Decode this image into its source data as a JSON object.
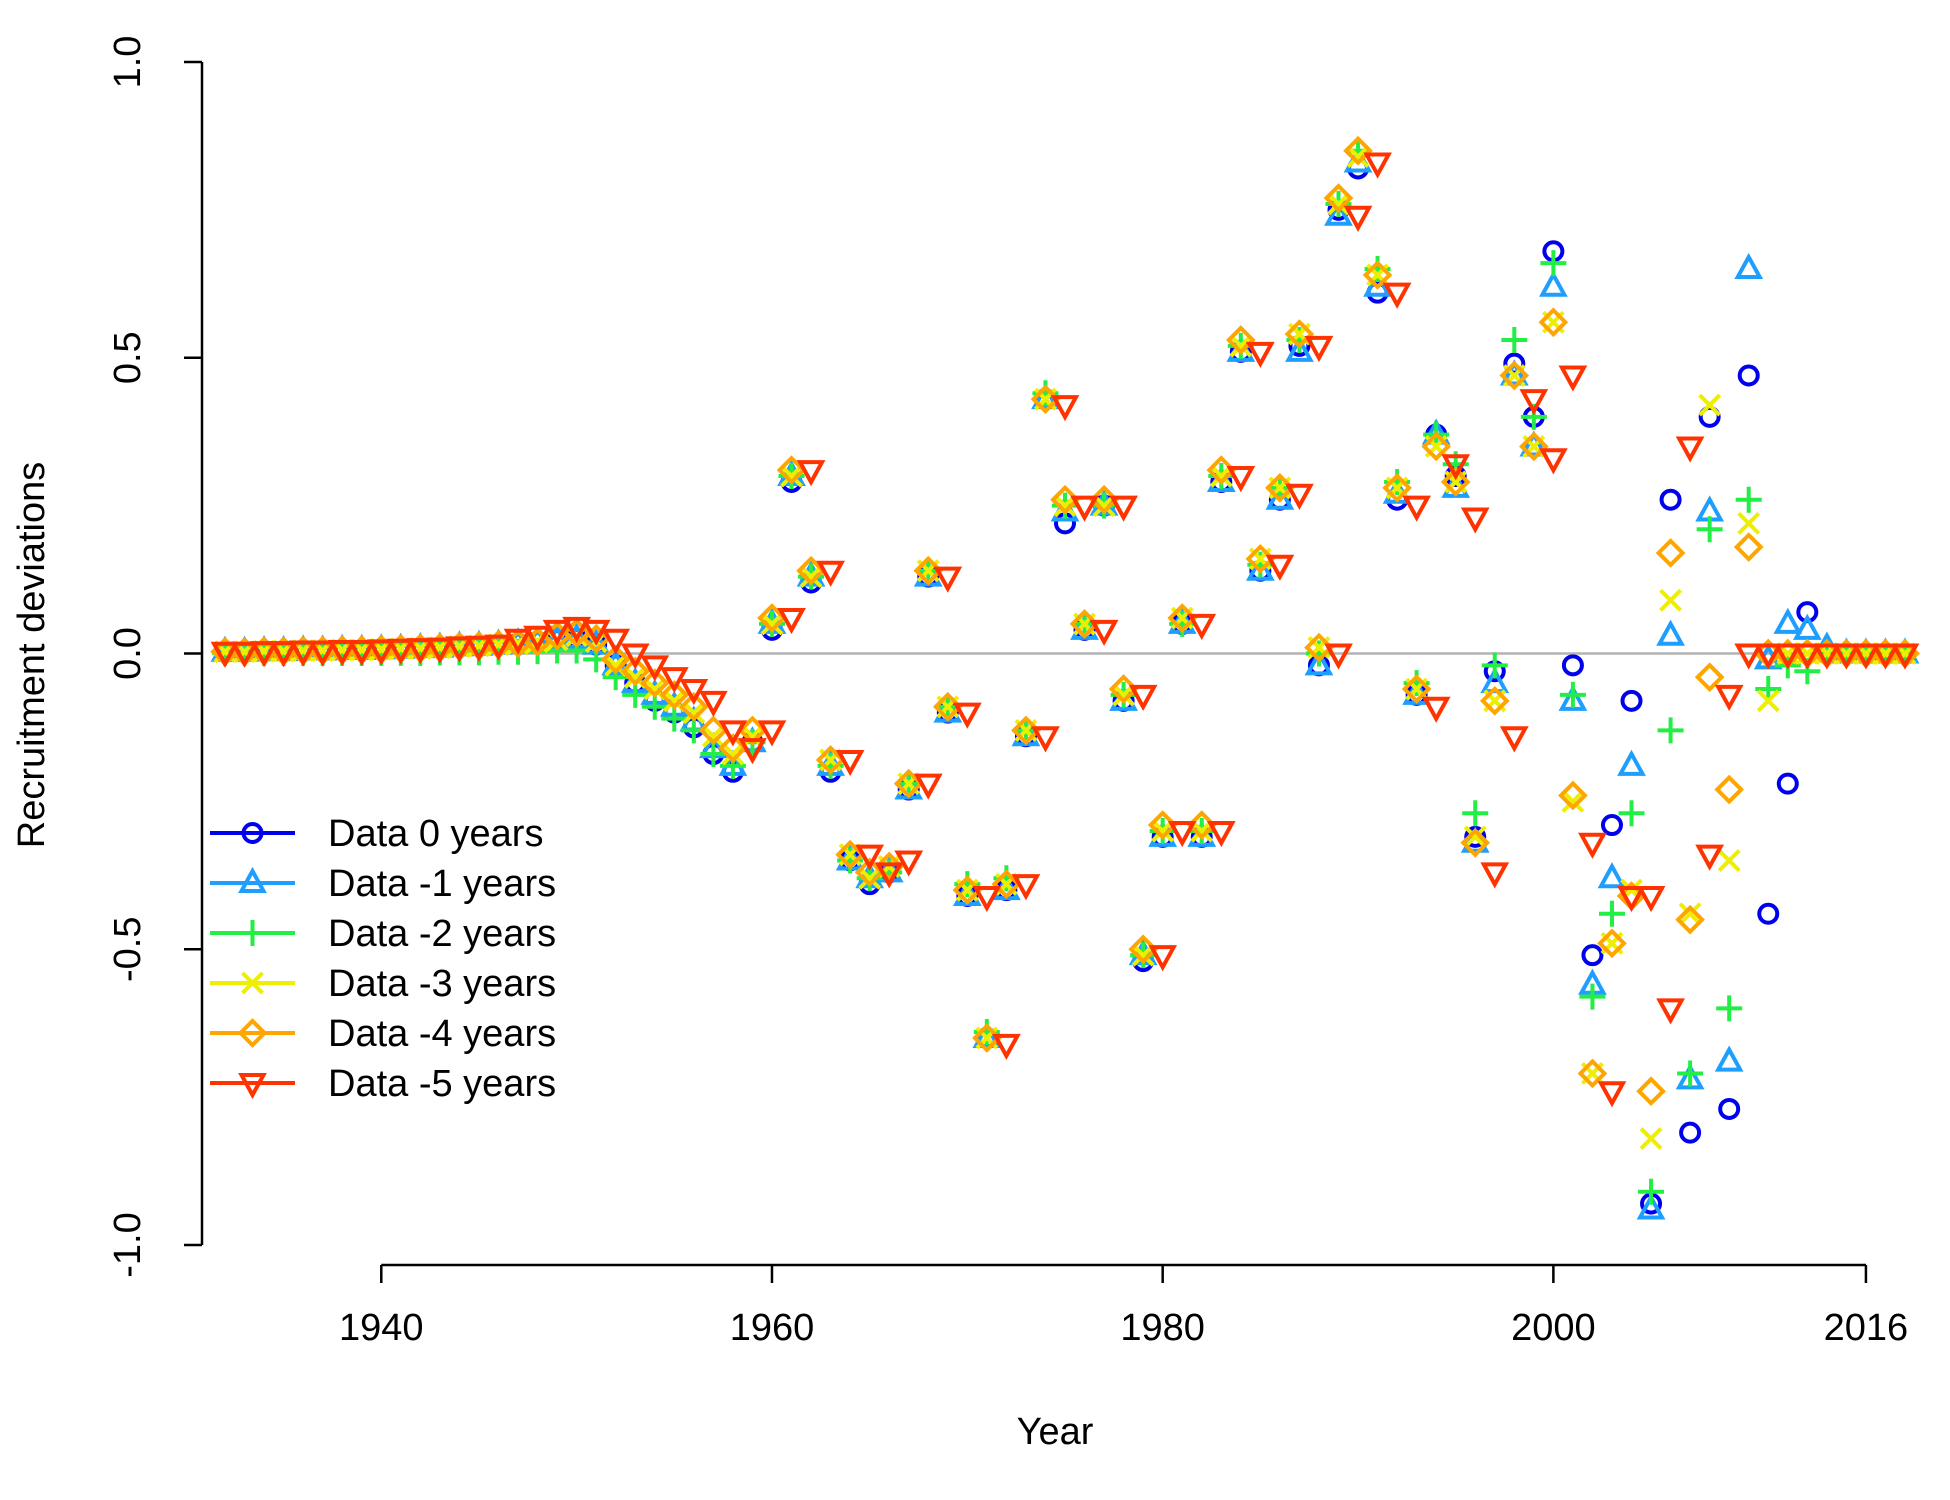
{
  "chart_data": {
    "type": "scatter",
    "title": "",
    "xlabel": "Year",
    "ylabel": "Recruitment deviations",
    "xlim": [
      1932,
      2018
    ],
    "ylim": [
      -1.0,
      1.0
    ],
    "x_ticks": [
      1940,
      1960,
      1980,
      2000,
      2016
    ],
    "y_ticks": [
      -1.0,
      -0.5,
      0.0,
      0.5,
      1.0
    ],
    "y_tick_labels": [
      "-1.0",
      "-0.5",
      "0.0",
      "0.5",
      "1.0"
    ],
    "reference_line": {
      "y": 0.0,
      "color": "#b3b3b3"
    },
    "legend": {
      "position": "left"
    },
    "x": [
      1932,
      1933,
      1934,
      1935,
      1936,
      1937,
      1938,
      1939,
      1940,
      1941,
      1942,
      1943,
      1944,
      1945,
      1946,
      1947,
      1948,
      1949,
      1950,
      1951,
      1952,
      1953,
      1954,
      1955,
      1956,
      1957,
      1958,
      1959,
      1960,
      1961,
      1962,
      1963,
      1964,
      1965,
      1966,
      1967,
      1968,
      1969,
      1970,
      1971,
      1972,
      1973,
      1974,
      1975,
      1976,
      1977,
      1978,
      1979,
      1980,
      1981,
      1982,
      1983,
      1984,
      1985,
      1986,
      1987,
      1988,
      1989,
      1990,
      1991,
      1992,
      1993,
      1994,
      1995,
      1996,
      1997,
      1998,
      1999,
      2000,
      2001,
      2002,
      2003,
      2004,
      2005,
      2006,
      2007,
      2008,
      2009,
      2010,
      2011,
      2012,
      2013,
      2014,
      2015,
      2016,
      2017,
      2018
    ],
    "series": [
      {
        "name": "Data 0 years",
        "color": "#0000ee",
        "marker": "circle",
        "values": [
          0.003,
          0.003,
          0.004,
          0.004,
          0.005,
          0.005,
          0.006,
          0.006,
          0.007,
          0.008,
          0.009,
          0.01,
          0.012,
          0.013,
          0.015,
          0.017,
          0.02,
          0.023,
          0.025,
          0.015,
          -0.02,
          -0.05,
          -0.08,
          -0.1,
          -0.125,
          -0.17,
          -0.2,
          -0.15,
          0.04,
          0.29,
          0.12,
          -0.2,
          -0.35,
          -0.39,
          -0.37,
          -0.23,
          0.13,
          -0.1,
          -0.41,
          -0.65,
          -0.4,
          -0.14,
          0.43,
          0.22,
          0.04,
          0.25,
          -0.08,
          -0.52,
          -0.31,
          0.05,
          -0.31,
          0.29,
          0.51,
          0.14,
          0.26,
          0.52,
          -0.02,
          0.75,
          0.82,
          0.61,
          0.26,
          -0.07,
          0.37,
          0.3,
          -0.31,
          -0.03,
          0.49,
          0.4,
          0.68,
          -0.02,
          -0.51,
          -0.29,
          -0.08,
          -0.93,
          0.26,
          -0.81,
          0.4,
          -0.77,
          0.47,
          -0.44,
          -0.22,
          0.07,
          0.0,
          0.0,
          0.0,
          0.0,
          0.0
        ]
      },
      {
        "name": "Data -1 years",
        "color": "#1e9fff",
        "marker": "triangle-up",
        "values": [
          0.003,
          0.003,
          0.004,
          0.004,
          0.005,
          0.005,
          0.006,
          0.006,
          0.007,
          0.008,
          0.009,
          0.01,
          0.012,
          0.013,
          0.015,
          0.017,
          0.02,
          0.023,
          0.025,
          0.015,
          -0.02,
          -0.05,
          -0.07,
          -0.09,
          -0.115,
          -0.16,
          -0.19,
          -0.15,
          0.05,
          0.3,
          0.13,
          -0.19,
          -0.35,
          -0.38,
          -0.37,
          -0.23,
          0.13,
          -0.1,
          -0.41,
          -0.65,
          -0.4,
          -0.14,
          0.43,
          0.24,
          0.04,
          0.25,
          -0.08,
          -0.51,
          -0.31,
          0.05,
          -0.31,
          0.29,
          0.51,
          0.14,
          0.26,
          0.51,
          -0.02,
          0.74,
          0.83,
          0.62,
          0.27,
          -0.07,
          0.37,
          0.28,
          -0.32,
          -0.05,
          0.47,
          0.35,
          0.62,
          -0.08,
          -0.56,
          -0.38,
          -0.19,
          -0.94,
          0.03,
          -0.72,
          0.24,
          -0.69,
          0.65,
          -0.01,
          0.05,
          0.04,
          0.01,
          0.0,
          0.0,
          0.0,
          0.0
        ]
      },
      {
        "name": "Data -2 years",
        "color": "#22ee44",
        "marker": "plus",
        "values": [
          0.001,
          0.001,
          0.001,
          0.001,
          0.001,
          0.001,
          0.001,
          0.001,
          0.001,
          0.001,
          0.001,
          0.002,
          0.002,
          0.002,
          0.003,
          0.003,
          0.004,
          0.005,
          0.005,
          -0.01,
          -0.04,
          -0.07,
          -0.09,
          -0.11,
          -0.13,
          -0.17,
          -0.19,
          -0.15,
          0.05,
          0.3,
          0.13,
          -0.19,
          -0.35,
          -0.38,
          -0.37,
          -0.22,
          0.14,
          -0.09,
          -0.39,
          -0.64,
          -0.38,
          -0.13,
          0.44,
          0.25,
          0.05,
          0.25,
          -0.07,
          -0.51,
          -0.3,
          0.05,
          -0.3,
          0.3,
          0.52,
          0.15,
          0.28,
          0.53,
          0.0,
          0.76,
          0.85,
          0.65,
          0.29,
          -0.05,
          0.37,
          0.32,
          -0.27,
          -0.02,
          0.53,
          0.4,
          0.66,
          -0.07,
          -0.58,
          -0.44,
          -0.27,
          -0.91,
          -0.13,
          -0.71,
          0.21,
          -0.6,
          0.26,
          -0.06,
          -0.02,
          -0.03,
          0.0,
          0.0,
          0.0,
          0.0,
          0.0
        ]
      },
      {
        "name": "Data -3 years",
        "color": "#eeee00",
        "marker": "x",
        "values": [
          0.003,
          0.003,
          0.004,
          0.004,
          0.005,
          0.005,
          0.006,
          0.006,
          0.007,
          0.008,
          0.009,
          0.01,
          0.012,
          0.013,
          0.015,
          0.017,
          0.02,
          0.023,
          0.03,
          0.02,
          -0.02,
          -0.04,
          -0.06,
          -0.08,
          -0.1,
          -0.14,
          -0.17,
          -0.14,
          0.05,
          0.3,
          0.13,
          -0.18,
          -0.34,
          -0.38,
          -0.36,
          -0.22,
          0.14,
          -0.09,
          -0.4,
          -0.65,
          -0.39,
          -0.13,
          0.43,
          0.25,
          0.05,
          0.25,
          -0.07,
          -0.51,
          -0.3,
          0.06,
          -0.3,
          0.3,
          0.52,
          0.16,
          0.28,
          0.54,
          0.01,
          0.76,
          0.84,
          0.64,
          0.28,
          -0.06,
          0.35,
          0.29,
          -0.31,
          -0.08,
          0.47,
          0.35,
          0.56,
          -0.25,
          -0.71,
          -0.49,
          -0.4,
          -0.82,
          0.09,
          -0.44,
          0.42,
          -0.35,
          0.22,
          -0.08,
          0.0,
          0.0,
          0.0,
          0.0,
          0.0,
          0.0,
          0.0
        ]
      },
      {
        "name": "Data -4 years",
        "color": "#ffa500",
        "marker": "diamond",
        "values": [
          0.003,
          0.003,
          0.004,
          0.004,
          0.005,
          0.005,
          0.006,
          0.006,
          0.007,
          0.008,
          0.009,
          0.01,
          0.012,
          0.013,
          0.015,
          0.017,
          0.02,
          0.03,
          0.035,
          0.025,
          -0.01,
          -0.03,
          -0.05,
          -0.07,
          -0.09,
          -0.13,
          -0.16,
          -0.13,
          0.06,
          0.31,
          0.14,
          -0.18,
          -0.34,
          -0.37,
          -0.36,
          -0.22,
          0.14,
          -0.09,
          -0.4,
          -0.65,
          -0.39,
          -0.13,
          0.43,
          0.26,
          0.05,
          0.26,
          -0.06,
          -0.5,
          -0.29,
          0.06,
          -0.29,
          0.31,
          0.53,
          0.16,
          0.28,
          0.54,
          0.01,
          0.77,
          0.85,
          0.64,
          0.28,
          -0.06,
          0.35,
          0.29,
          -0.32,
          -0.08,
          0.47,
          0.35,
          0.56,
          -0.24,
          -0.71,
          -0.49,
          -0.41,
          -0.74,
          0.17,
          -0.45,
          -0.04,
          -0.23,
          0.18,
          0.0,
          0.0,
          0.0,
          0.0,
          0.0,
          0.0,
          0.0,
          0.0
        ]
      },
      {
        "name": "Data -5 years",
        "color": "#ff3300",
        "marker": "triangle-down",
        "values": [
          0.003,
          0.003,
          0.004,
          0.004,
          0.005,
          0.005,
          0.006,
          0.006,
          0.007,
          0.008,
          0.009,
          0.01,
          0.012,
          0.013,
          0.015,
          0.025,
          0.03,
          0.04,
          0.045,
          0.04,
          0.025,
          0.0,
          -0.02,
          -0.04,
          -0.06,
          -0.08,
          -0.13,
          -0.16,
          -0.13,
          0.06,
          0.31,
          0.14,
          -0.18,
          -0.34,
          -0.37,
          -0.35,
          -0.22,
          0.13,
          -0.1,
          -0.41,
          -0.66,
          -0.39,
          -0.14,
          0.42,
          0.25,
          0.04,
          0.25,
          -0.07,
          -0.51,
          -0.3,
          0.05,
          -0.3,
          0.3,
          0.51,
          0.15,
          0.27,
          0.52,
          0.0,
          0.74,
          0.83,
          0.61,
          0.25,
          -0.09,
          0.32,
          0.23,
          -0.37,
          -0.14,
          0.43,
          0.33,
          0.47,
          -0.32,
          -0.74,
          -0.41,
          -0.41,
          -0.6,
          0.35,
          -0.34,
          -0.07,
          0.0,
          0.0,
          0.0,
          0.0,
          0.0,
          0.0,
          0.0,
          0.0,
          0.0
        ]
      }
    ]
  }
}
